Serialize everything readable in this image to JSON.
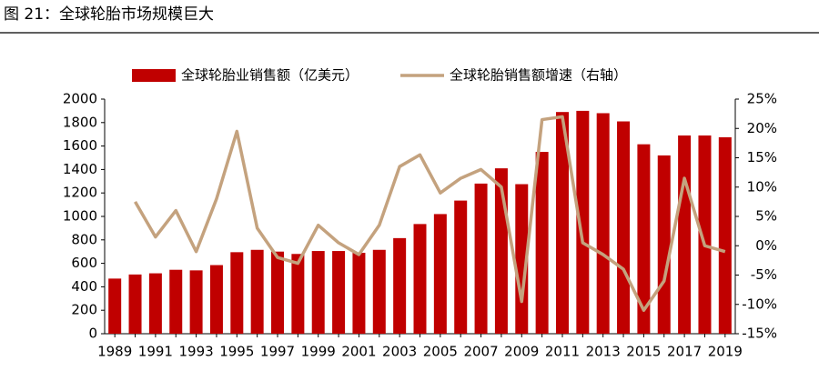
{
  "chart_data": {
    "type": "bar_line",
    "title": "图 21：全球轮胎市场规模巨大",
    "categories": [
      "1989",
      null,
      "1991",
      null,
      "1993",
      null,
      "1995",
      null,
      "1997",
      null,
      "1999",
      null,
      "2001",
      null,
      "2003",
      null,
      "2005",
      null,
      "2007",
      null,
      "2009",
      null,
      "2011",
      null,
      "2013",
      null,
      "2015",
      null,
      "2017",
      null,
      "2019"
    ],
    "series": [
      {
        "name": "全球轮胎业销售额（亿美元）",
        "type": "bar",
        "color": "#c00000",
        "values": [
          470,
          505,
          515,
          545,
          540,
          585,
          695,
          715,
          700,
          680,
          705,
          705,
          690,
          715,
          815,
          935,
          1020,
          1135,
          1280,
          1410,
          1275,
          1550,
          1890,
          1900,
          1880,
          1810,
          1615,
          1520,
          1690,
          1690,
          1675
        ]
      },
      {
        "name": "全球轮胎销售额增速（右轴）",
        "type": "line",
        "axis": "y2",
        "color": "#c4a27e",
        "values": [
          null,
          7.5,
          1.5,
          6,
          -1,
          8,
          19.5,
          3,
          -2,
          -3,
          3.5,
          0.5,
          -1.5,
          3.5,
          13.5,
          15.5,
          9,
          11.5,
          13,
          10,
          -9.5,
          21.5,
          22,
          0.5,
          -1.5,
          -4,
          -11,
          -6,
          11.5,
          0,
          -1
        ]
      }
    ],
    "ylim": [
      0,
      2000
    ],
    "yticks": [
      0,
      200,
      400,
      600,
      800,
      1000,
      1200,
      1400,
      1600,
      1800,
      2000
    ],
    "y2lim": [
      -15,
      25
    ],
    "y2ticks": [
      {
        "value": -15,
        "label": "-15%"
      },
      {
        "value": -10,
        "label": "-10%"
      },
      {
        "value": -5,
        "label": "-5%"
      },
      {
        "value": 0,
        "label": "0%"
      },
      {
        "value": 5,
        "label": "5%"
      },
      {
        "value": 10,
        "label": "10%"
      },
      {
        "value": 15,
        "label": "15%"
      },
      {
        "value": 20,
        "label": "20%"
      },
      {
        "value": 25,
        "label": "25%"
      }
    ],
    "legend": "top"
  }
}
